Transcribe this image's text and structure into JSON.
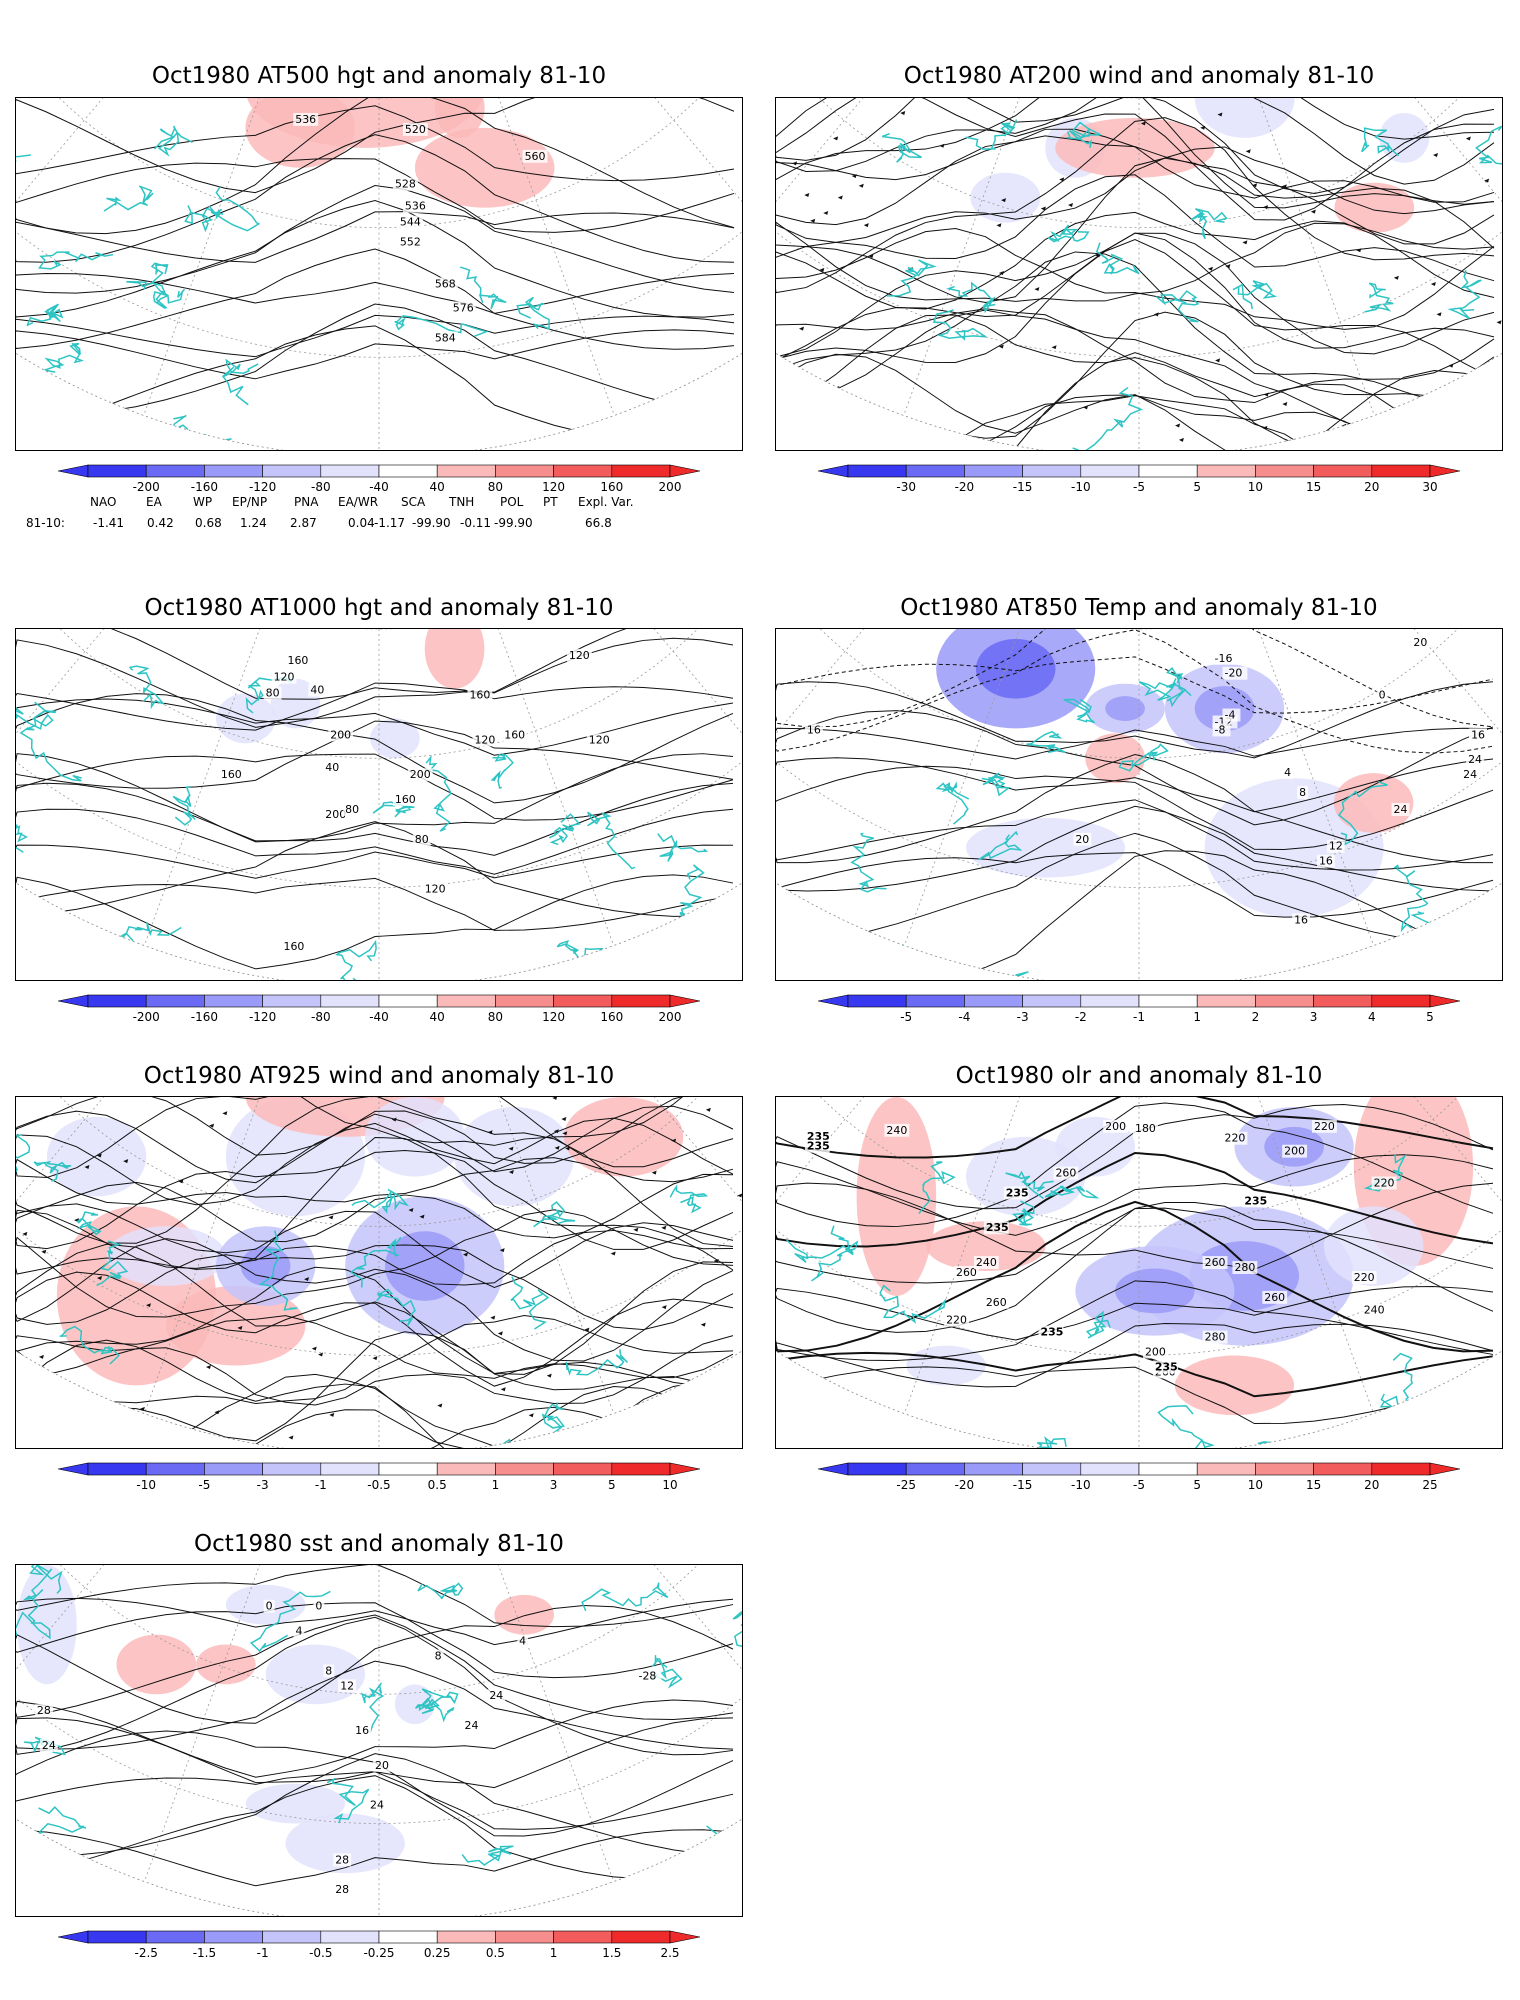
{
  "panels": [
    {
      "id": "p1",
      "title": "Oct1980 AT500 hgt and anomaly 81-10",
      "contour_labels": [
        "536",
        "520",
        "528",
        "536",
        "544",
        "552",
        "560",
        "568",
        "576",
        "584"
      ],
      "colorbar": [
        "-200",
        "-160",
        "-120",
        "-80",
        "-40",
        "40",
        "80",
        "120",
        "160",
        "200"
      ]
    },
    {
      "id": "p2",
      "title": "Oct1980 AT200 wind and anomaly 81-10",
      "contour_labels": [],
      "colorbar": [
        "-30",
        "-20",
        "-15",
        "-10",
        "-5",
        "5",
        "10",
        "15",
        "20",
        "30"
      ]
    },
    {
      "id": "p3",
      "title": "Oct1980 AT1000 hgt and anomaly 81-10",
      "contour_labels": [
        "160",
        "120",
        "80",
        "200",
        "40",
        "40",
        "160",
        "120",
        "200",
        "200",
        "80",
        "160",
        "120",
        "120",
        "160",
        "80",
        "160",
        "120",
        "160"
      ],
      "colorbar": [
        "-200",
        "-160",
        "-120",
        "-80",
        "-40",
        "40",
        "80",
        "120",
        "160",
        "200"
      ]
    },
    {
      "id": "p4",
      "title": "Oct1980 AT850 Temp and anomaly 81-10",
      "contour_labels": [
        "16",
        "-16",
        "-20",
        "-12",
        "-8",
        "-4",
        "0",
        "20",
        "4",
        "8",
        "24",
        "16",
        "12",
        "16",
        "24",
        "24",
        "16",
        "20",
        "16"
      ],
      "colorbar": [
        "-5",
        "-4",
        "-3",
        "-2",
        "-1",
        "1",
        "2",
        "3",
        "4",
        "5"
      ]
    },
    {
      "id": "p5",
      "title": "Oct1980 AT925 wind and anomaly 81-10",
      "contour_labels": [],
      "colorbar": [
        "-10",
        "-5",
        "-3",
        "-1",
        "-0.5",
        "0.5",
        "1",
        "3",
        "5",
        "10"
      ]
    },
    {
      "id": "p6",
      "title": "Oct1980 olr and anomaly 81-10",
      "contour_labels": [
        "235",
        "240",
        "235",
        "220",
        "200",
        "180",
        "200",
        "220",
        "260",
        "235",
        "220",
        "260",
        "235",
        "260",
        "240",
        "220",
        "235",
        "260",
        "280",
        "260",
        "280",
        "220",
        "235",
        "200",
        "260",
        "240",
        "235"
      ],
      "colorbar": [
        "-25",
        "-20",
        "-15",
        "-10",
        "-5",
        "5",
        "10",
        "15",
        "20",
        "25"
      ]
    },
    {
      "id": "p7",
      "title": "Oct1980 sst and anomaly 81-10",
      "contour_labels": [
        "28",
        "24",
        "0",
        "0",
        "4",
        "8",
        "12",
        "16",
        "20",
        "24",
        "24",
        "28",
        "28",
        "4",
        "8",
        "24",
        "-28"
      ],
      "colorbar": [
        "-2.5",
        "-1.5",
        "-1",
        "-0.5",
        "-0.25",
        "0.25",
        "0.5",
        "1",
        "1.5",
        "2.5"
      ]
    }
  ],
  "teleconnection": {
    "headers": [
      "NAO",
      "EA",
      "WP",
      "EP/NP",
      "PNA",
      "EA/WR",
      "SCA",
      "TNH",
      "POL",
      "PT",
      "Expl. Var."
    ],
    "row_label": "81-10:",
    "values": [
      "-1.41",
      "0.42",
      "0.68",
      "1.24",
      "2.87",
      "0.04",
      "-1.17",
      "-99.90",
      "-0.11",
      "-99.90",
      "66.8"
    ]
  },
  "colors": {
    "coast": "#2ec4c4",
    "neg": [
      "#3838f0",
      "#6a6af4",
      "#9a9af8",
      "#c4c4fb",
      "#e2e2fd"
    ],
    "pos": [
      "#fde0e0",
      "#fbbaba",
      "#f78e8e",
      "#f25c5c",
      "#ee2a2a"
    ]
  }
}
